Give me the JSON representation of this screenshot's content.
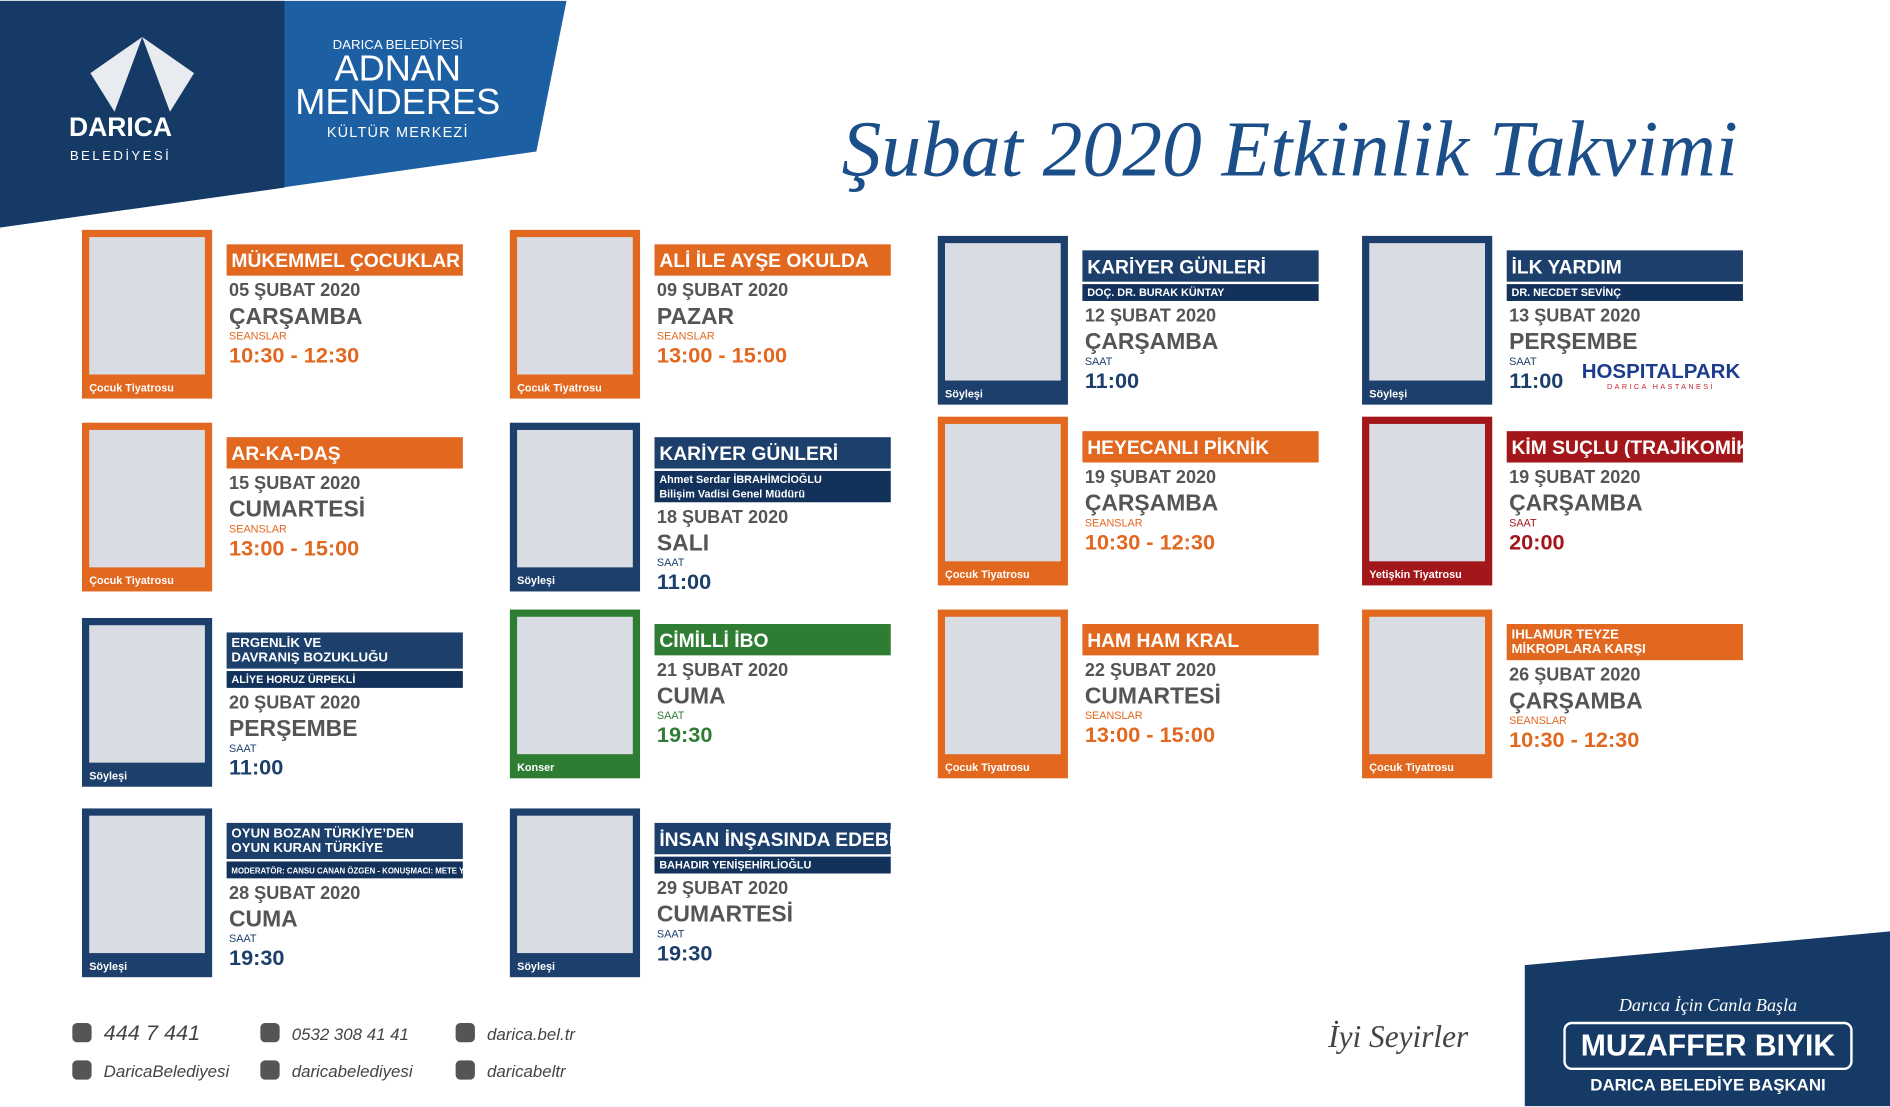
{
  "header": {
    "logo_name": "DARICA",
    "logo_sub": "BELEDİYESİ",
    "venue_top": "DARICA BELEDİYESİ",
    "venue_lines": [
      "ADNAN",
      "MENDERES"
    ],
    "venue_bottom": "KÜLTÜR MERKEZİ",
    "title": "Şubat 2020 Etkinlik Takvimi"
  },
  "events": [
    {
      "title": [
        "MÜKEMMEL ÇOCUKLAR"
      ],
      "date": "05 ŞUBAT 2020",
      "day": "ÇARŞAMBA",
      "time_label": "SEANSLAR",
      "time": "10:30 - 12:30",
      "category": "Çocuk Tiyatrosu",
      "color": "#e2671f"
    },
    {
      "title": [
        "AR-KA-DAŞ"
      ],
      "date": "15 ŞUBAT 2020",
      "day": "CUMARTESİ",
      "time_label": "SEANSLAR",
      "time": "13:00 - 15:00",
      "category": "Çocuk Tiyatrosu",
      "color": "#e2671f"
    },
    {
      "title": [
        "ERGENLİK VE",
        "DAVRANIŞ BOZUKLUĞU"
      ],
      "speaker": [
        "ALİYE HORUZ ÜRPEKLİ"
      ],
      "date": "20 ŞUBAT 2020",
      "day": "PERŞEMBE",
      "time_label": "SAAT",
      "time": "11:00",
      "category": "Söyleşi",
      "color": "#1c3f6b"
    },
    {
      "title": [
        "OYUN BOZAN TÜRKİYE’DEN",
        "OYUN KURAN TÜRKİYE"
      ],
      "speaker": [
        "MODERATÖR: CANSU CANAN ÖZGEN - KONUŞMACI: METE YARAR"
      ],
      "date": "28 ŞUBAT 2020",
      "day": "CUMA",
      "time_label": "SAAT",
      "time": "19:30",
      "category": "Söyleşi",
      "color": "#1c3f6b"
    },
    {
      "title": [
        "ALİ İLE AYŞE OKULDA"
      ],
      "date": "09 ŞUBAT 2020",
      "day": "PAZAR",
      "time_label": "SEANSLAR",
      "time": "13:00 - 15:00",
      "category": "Çocuk Tiyatrosu",
      "color": "#e2671f"
    },
    {
      "title": [
        "KARİYER GÜNLERİ"
      ],
      "speaker": [
        "Ahmet Serdar İBRAHİMCİOĞLU",
        "Bilişim Vadisi Genel Müdürü"
      ],
      "date": "18 ŞUBAT 2020",
      "day": "SALI",
      "time_label": "SAAT",
      "time": "11:00",
      "category": "Söyleşi",
      "color": "#1c3f6b"
    },
    {
      "title": [
        "CİMİLLİ İBO"
      ],
      "date": "21 ŞUBAT 2020",
      "day": "CUMA",
      "time_label": "SAAT",
      "time": "19:30",
      "category": "Konser",
      "color": "#2e7d32"
    },
    {
      "title": [
        "İNSAN İNŞASINDA EDEBİYAT"
      ],
      "speaker": [
        "BAHADIR YENİŞEHİRLİOĞLU"
      ],
      "date": "29 ŞUBAT 2020",
      "day": "CUMARTESİ",
      "time_label": "SAAT",
      "time": "19:30",
      "category": "Söyleşi",
      "color": "#1c3f6b"
    },
    {
      "title": [
        "KARİYER GÜNLERİ"
      ],
      "speaker": [
        "DOÇ. DR. BURAK KÜNTAY"
      ],
      "date": "12 ŞUBAT 2020",
      "day": "ÇARŞAMBA",
      "time_label": "SAAT",
      "time": "11:00",
      "category": "Söyleşi",
      "color": "#1c3f6b"
    },
    {
      "title": [
        "HEYECANLI PİKNİK"
      ],
      "date": "19 ŞUBAT 2020",
      "day": "ÇARŞAMBA",
      "time_label": "SEANSLAR",
      "time": "10:30 - 12:30",
      "category": "Çocuk Tiyatrosu",
      "color": "#e2671f"
    },
    {
      "title": [
        "HAM HAM KRAL"
      ],
      "date": "22 ŞUBAT 2020",
      "day": "CUMARTESİ",
      "time_label": "SEANSLAR",
      "time": "13:00 - 15:00",
      "category": "Çocuk Tiyatrosu",
      "color": "#e2671f"
    },
    {
      "title": [
        "İLK YARDIM"
      ],
      "speaker": [
        "DR. NECDET SEVİNÇ"
      ],
      "date": "13 ŞUBAT 2020",
      "day": "PERŞEMBE",
      "time_label": "SAAT",
      "time": "11:00",
      "category": "Söyleşi",
      "color": "#1c3f6b",
      "sponsor": [
        "HOSPITALPARK",
        "DARICA HASTANESİ"
      ]
    },
    {
      "title": [
        "KİM SUÇLU (TRAJİKOMİK)"
      ],
      "date": "19 ŞUBAT 2020",
      "day": "ÇARŞAMBA",
      "time_label": "SAAT",
      "time": "20:00",
      "category": "Yetişkin Tiyatrosu",
      "color": "#a3161a"
    },
    {
      "title": [
        "IHLAMUR TEYZE",
        "MİKROPLARA KARŞI"
      ],
      "date": "26 ŞUBAT 2020",
      "day": "ÇARŞAMBA",
      "time_label": "SEANSLAR",
      "time": "10:30 - 12:30",
      "category": "Çocuk Tiyatrosu",
      "color": "#e2671f"
    }
  ],
  "footer": {
    "contacts": [
      "444 7 441",
      "0532 308 41 41",
      "darica.bel.tr",
      "DaricaBelediyesi",
      "daricabelediyesi",
      "daricabeltr"
    ],
    "farewell": "İyi Seyirler",
    "slogan": "Darıca İçin Canla Başla",
    "mayor": "MUZAFFER BIYIK",
    "mayor_title": "DARICA BELEDİYE BAŞKANI"
  }
}
